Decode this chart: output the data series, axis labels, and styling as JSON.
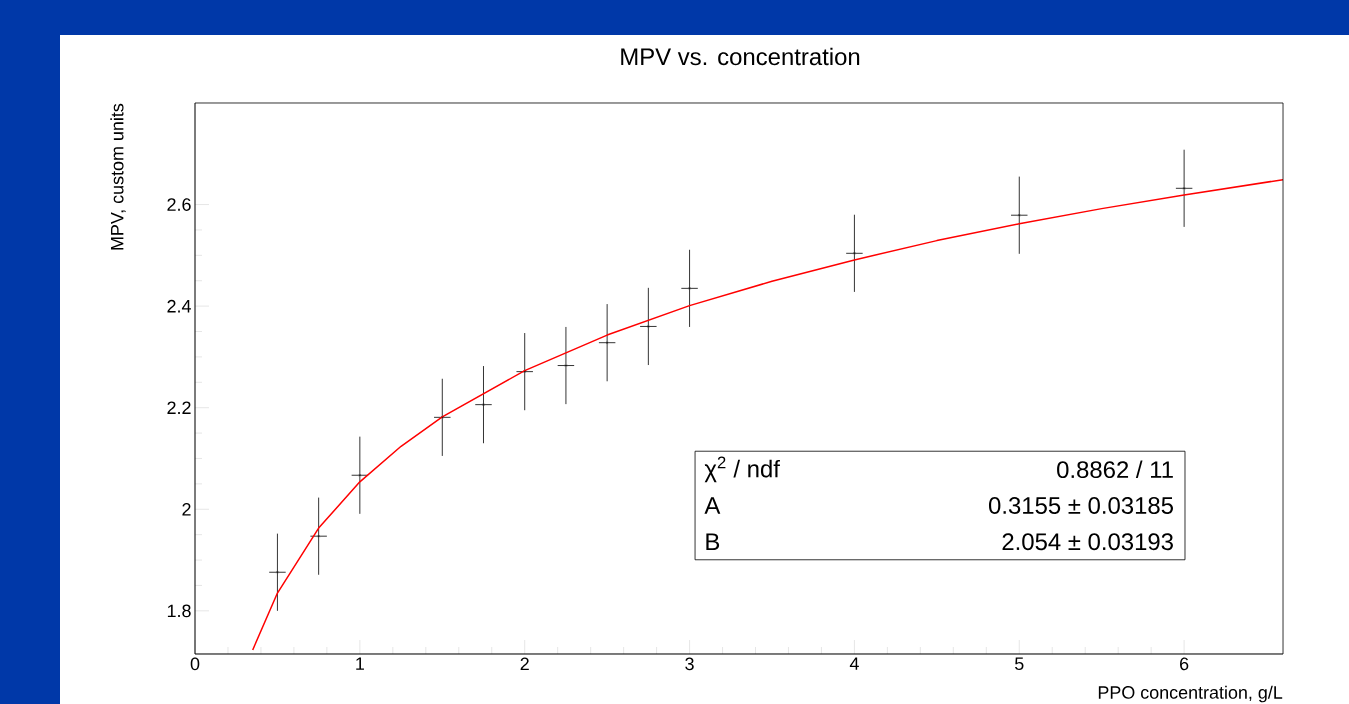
{
  "chart_data": {
    "type": "scatter",
    "title": "MPV vs. concentration",
    "xlabel": "PPO concentration, g/L",
    "ylabel": "MPV, custom units",
    "xlim": [
      0,
      6.6
    ],
    "ylim": [
      1.715,
      2.8
    ],
    "xticks": [
      0,
      1,
      2,
      3,
      4,
      5,
      6
    ],
    "yticks": [
      1.8,
      2,
      2.2,
      2.4,
      2.6
    ],
    "marker": "cross",
    "grid": false,
    "series": [
      {
        "color": "#000000",
        "x": [
          0.5,
          0.75,
          1,
          1.5,
          1.75,
          2,
          2.25,
          2.5,
          2.75,
          3,
          4,
          5,
          6
        ],
        "values": [
          1.876,
          1.947,
          2.067,
          2.181,
          2.206,
          2.271,
          2.283,
          2.328,
          2.36,
          2.435,
          2.504,
          2.579,
          2.632
        ],
        "errors": [
          0.076,
          0.076,
          0.076,
          0.076,
          0.076,
          0.076,
          0.076,
          0.076,
          0.076,
          0.076,
          0.076,
          0.076,
          0.076
        ],
        "xerrors": [
          0.05,
          0.05,
          0.05,
          0.05,
          0.05,
          0.05,
          0.05,
          0.05,
          0.05,
          0.05,
          0.05,
          0.05,
          0.05
        ]
      },
      {
        "type": "line",
        "color": "#ff0000",
        "marker": "none",
        "x": [
          0.35,
          0.5,
          0.75,
          1,
          1.25,
          1.5,
          2,
          2.5,
          3,
          3.5,
          4,
          4.5,
          5,
          5.5,
          6,
          6.6
        ],
        "values": [
          1.723,
          1.835,
          1.963,
          2.054,
          2.124,
          2.182,
          2.273,
          2.343,
          2.401,
          2.449,
          2.491,
          2.529,
          2.562,
          2.592,
          2.619,
          2.649
        ]
      }
    ],
    "annotations": [
      "χ$^{2}$ / ndf",
      "0.8862 / 11",
      "A",
      "0.3155 ± 0.03185",
      "B",
      "2.054 ± 0.03193"
    ]
  }
}
